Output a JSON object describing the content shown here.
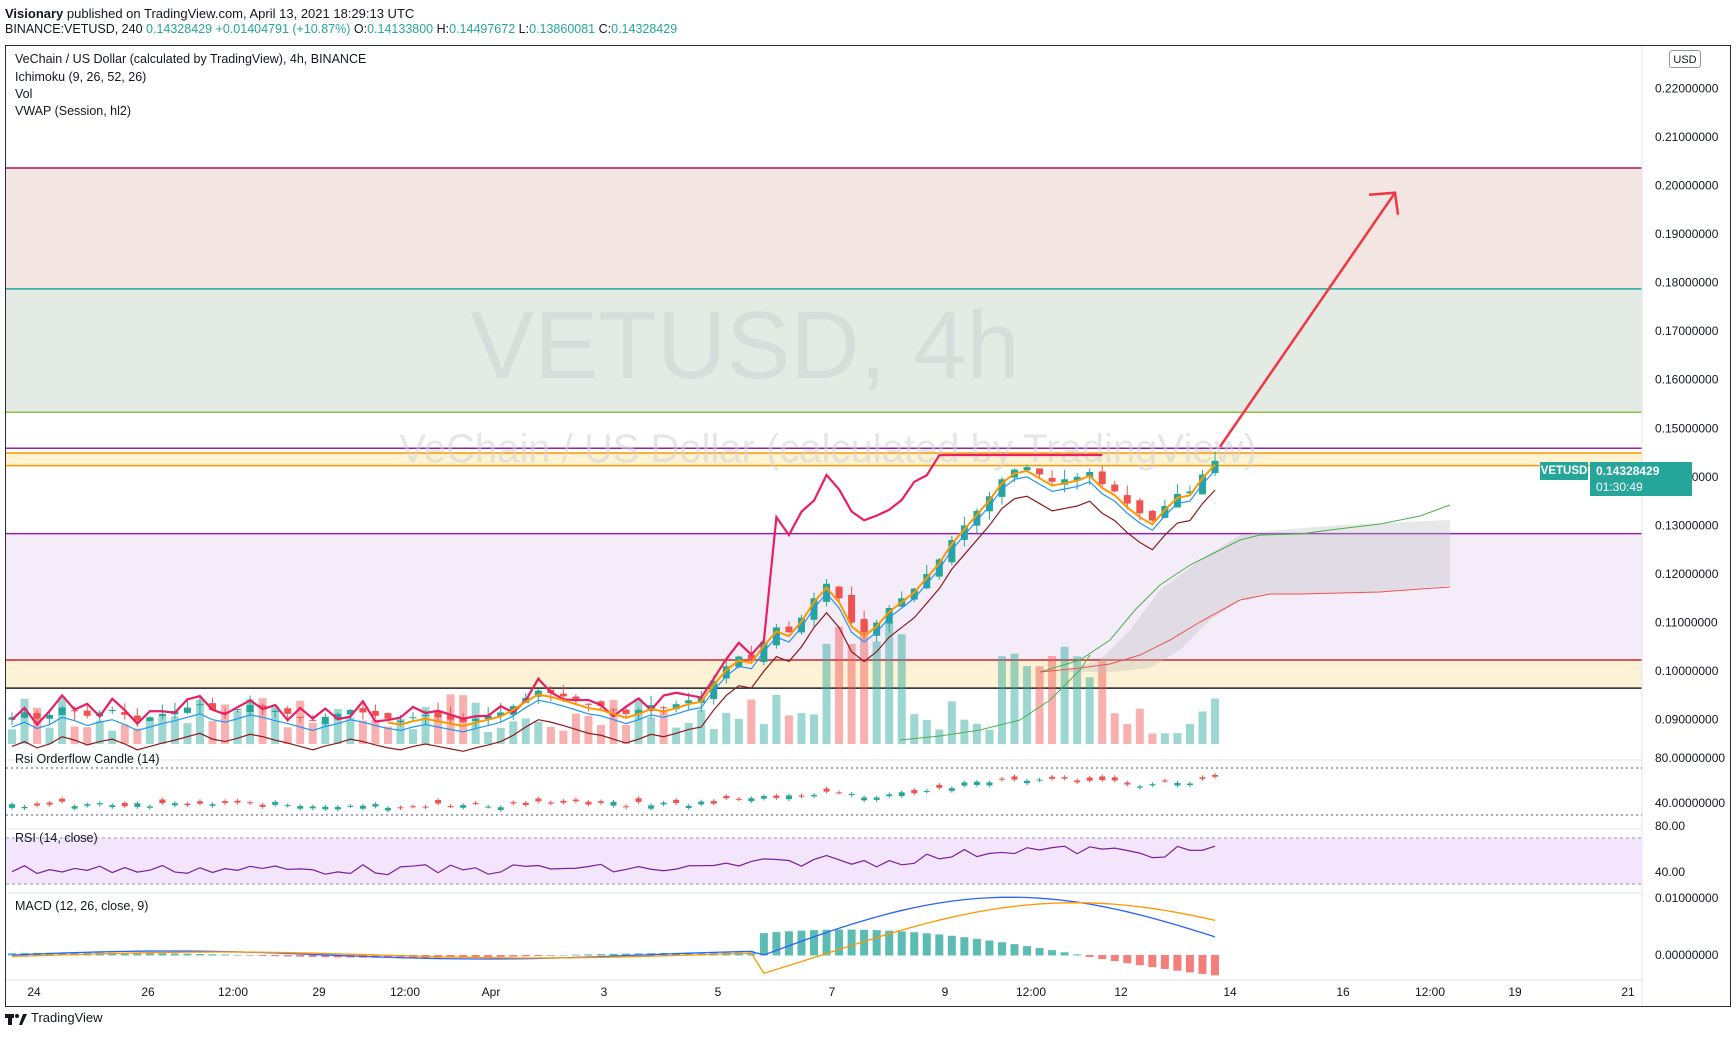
{
  "header": {
    "publisher": "Visionary",
    "published_text": " published on TradingView.com, April 13, 2021 18:29:13 UTC",
    "symbol_line": "BINANCE:VETUSD, 240",
    "last": "0.14328429",
    "change": "+0.01404791 (+10.87%)",
    "open_label": "O:",
    "open": "0.14133800",
    "high_label": "H:",
    "high": "0.14497672",
    "low_label": "L:",
    "low": "0.13860081",
    "close_label": "C:",
    "close": "0.14328429"
  },
  "legend": {
    "title": "VeChain / US Dollar (calculated by TradingView), 4h, BINANCE",
    "ichimoku": "Ichimoku (9, 26, 52, 26)",
    "vol": "Vol",
    "vwap": "VWAP (Session, hl2)"
  },
  "watermark": {
    "main": "VETUSD, 4h",
    "sub": "VeChain / US Dollar (calculated by TradingView)"
  },
  "currency_button": "USD",
  "price_badge": {
    "symbol": "VETUSD",
    "price": "0.14328429",
    "countdown": "01:30:49"
  },
  "colors": {
    "up": "#26a69a",
    "down": "#ef5350",
    "accent_arrow": "#f23645",
    "rsi_line": "#e91e63",
    "macd_line": "#2962ff",
    "signal_line": "#ff9800"
  },
  "chart_data": [
    {
      "type": "candlestick",
      "pane": "price",
      "ylim": [
        0.085,
        0.225
      ],
      "y_ticks": [
        "0.22000000",
        "0.21000000",
        "0.20000000",
        "0.19000000",
        "0.18000000",
        "0.17000000",
        "0.16000000",
        "0.15000000",
        "0.14000000",
        "0.13000000",
        "0.12000000",
        "0.11000000",
        "0.10000000",
        "0.09000000"
      ],
      "x_ticks": [
        "24",
        "26",
        "12:00",
        "29",
        "12:00",
        "Apr",
        "3",
        "5",
        "7",
        "9",
        "12:00",
        "12",
        "14",
        "16",
        "12:00",
        "19",
        "21"
      ],
      "horizontal_levels": [
        {
          "value": 0.2036,
          "color": "#ad1457"
        },
        {
          "value": 0.1787,
          "color": "#26a69a"
        },
        {
          "value": 0.1533,
          "color": "#8bc34a"
        },
        {
          "value": 0.1459,
          "color": "#8e24aa"
        },
        {
          "value": 0.1449,
          "color": "#ff9800"
        },
        {
          "value": 0.1423,
          "color": "#ff9800"
        },
        {
          "value": 0.1283,
          "color": "#8e24aa"
        },
        {
          "value": 0.1023,
          "color": "#c62828"
        },
        {
          "value": 0.0965,
          "color": "#212121"
        }
      ],
      "zones": [
        {
          "from": 0.1787,
          "to": 0.2036,
          "color": "#f3e5e1"
        },
        {
          "from": 0.1533,
          "to": 0.1787,
          "color": "#e3ebe4"
        },
        {
          "from": 0.1423,
          "to": 0.1449,
          "color": "#fdf3d3"
        },
        {
          "from": 0.1023,
          "to": 0.1283,
          "color": "#f5ecf9"
        },
        {
          "from": 0.0965,
          "to": 0.1023,
          "color": "#fdf1d6"
        }
      ],
      "projection_arrow": {
        "from": [
          0.1462,
          0.1462
        ],
        "to": [
          0.1985,
          0.1985
        ]
      },
      "last_price": 0.14328429,
      "close_path": [
        0.0905,
        0.0915,
        0.0902,
        0.091,
        0.0925,
        0.0918,
        0.0908,
        0.0915,
        0.092,
        0.091,
        0.0898,
        0.0905,
        0.0912,
        0.0918,
        0.0925,
        0.0932,
        0.092,
        0.0915,
        0.0922,
        0.093,
        0.0925,
        0.0918,
        0.0912,
        0.0905,
        0.0898,
        0.0906,
        0.0912,
        0.092,
        0.0915,
        0.0908,
        0.0902,
        0.0898,
        0.0905,
        0.091,
        0.0905,
        0.09,
        0.0895,
        0.0902,
        0.0908,
        0.0915,
        0.0928,
        0.0945,
        0.096,
        0.0955,
        0.0948,
        0.094,
        0.0932,
        0.0928,
        0.092,
        0.0912,
        0.092,
        0.093,
        0.0925,
        0.0932,
        0.094,
        0.0945,
        0.098,
        0.101,
        0.103,
        0.1025,
        0.106,
        0.109,
        0.108,
        0.111,
        0.115,
        0.118,
        0.115,
        0.11,
        0.108,
        0.11,
        0.113,
        0.115,
        0.117,
        0.12,
        0.123,
        0.127,
        0.13,
        0.133,
        0.136,
        0.1395,
        0.1415,
        0.142,
        0.1405,
        0.139,
        0.1395,
        0.14,
        0.141,
        0.1385,
        0.137,
        0.1345,
        0.1325,
        0.131,
        0.134,
        0.1365,
        0.137,
        0.1405,
        0.1433
      ]
    },
    {
      "type": "line",
      "pane": "rsi-orderflow",
      "name": "Rsi Orderflow Candle (14)",
      "y_ticks": [
        "80.00000000",
        "40.00000000"
      ],
      "ylim": [
        30,
        90
      ]
    },
    {
      "type": "line",
      "pane": "rsi",
      "name": "RSI (14, close)",
      "y_ticks": [
        "80.00",
        "40.00"
      ],
      "ylim": [
        25,
        90
      ]
    },
    {
      "type": "line",
      "pane": "macd",
      "name": "MACD (12, 26, close, 9)",
      "y_ticks": [
        "0.01000000",
        "0.00000000"
      ],
      "ylim": [
        -0.003,
        0.012
      ]
    }
  ],
  "footer": {
    "brand": "TradingView"
  }
}
